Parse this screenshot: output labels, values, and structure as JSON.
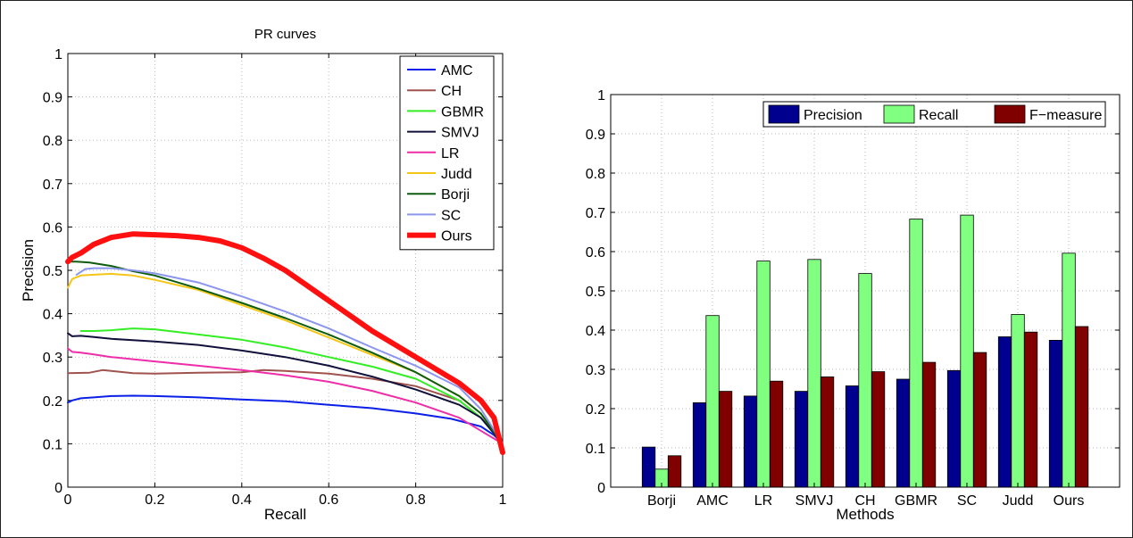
{
  "chart_data": [
    {
      "type": "line",
      "title": "PR curves",
      "xlabel": "Recall",
      "ylabel": "Precision",
      "xlim": [
        0,
        1
      ],
      "ylim": [
        0,
        1
      ],
      "xticks": [
        "0",
        "0.2",
        "0.4",
        "0.6",
        "0.8",
        "1"
      ],
      "yticks": [
        "0",
        "0.1",
        "0.2",
        "0.3",
        "0.4",
        "0.5",
        "0.6",
        "0.7",
        "0.8",
        "0.9",
        "1"
      ],
      "grid": true,
      "legend_position": "top-right",
      "series": [
        {
          "name": "AMC",
          "color": "#0a1fe8",
          "width": 2,
          "x": [
            0,
            0.01,
            0.03,
            0.06,
            0.1,
            0.15,
            0.2,
            0.3,
            0.4,
            0.5,
            0.6,
            0.7,
            0.8,
            0.88,
            0.95,
            0.98,
            1.0
          ],
          "y": [
            0.195,
            0.2,
            0.205,
            0.207,
            0.21,
            0.211,
            0.21,
            0.207,
            0.202,
            0.198,
            0.19,
            0.182,
            0.17,
            0.158,
            0.14,
            0.12,
            0.1
          ]
        },
        {
          "name": "CH",
          "color": "#a0524d",
          "width": 2,
          "x": [
            0,
            0.05,
            0.08,
            0.1,
            0.15,
            0.2,
            0.3,
            0.4,
            0.45,
            0.5,
            0.6,
            0.7,
            0.8,
            0.9,
            0.95,
            1.0
          ],
          "y": [
            0.263,
            0.264,
            0.27,
            0.268,
            0.263,
            0.262,
            0.264,
            0.265,
            0.27,
            0.268,
            0.262,
            0.25,
            0.233,
            0.2,
            0.16,
            0.1
          ]
        },
        {
          "name": "GBMR",
          "color": "#33ee22",
          "width": 2,
          "x": [
            0.03,
            0.06,
            0.1,
            0.15,
            0.2,
            0.3,
            0.4,
            0.5,
            0.6,
            0.7,
            0.8,
            0.9,
            0.95,
            1.0
          ],
          "y": [
            0.36,
            0.36,
            0.362,
            0.366,
            0.364,
            0.352,
            0.34,
            0.322,
            0.3,
            0.278,
            0.25,
            0.2,
            0.16,
            0.1
          ]
        },
        {
          "name": "SMVJ",
          "color": "#10103a",
          "width": 2,
          "x": [
            0,
            0.01,
            0.03,
            0.06,
            0.1,
            0.2,
            0.3,
            0.4,
            0.5,
            0.6,
            0.7,
            0.8,
            0.9,
            0.95,
            1.0
          ],
          "y": [
            0.355,
            0.348,
            0.349,
            0.346,
            0.342,
            0.336,
            0.328,
            0.315,
            0.3,
            0.28,
            0.255,
            0.225,
            0.19,
            0.16,
            0.1
          ]
        },
        {
          "name": "LR",
          "color": "#ee2ea8",
          "width": 2,
          "x": [
            0,
            0.01,
            0.03,
            0.06,
            0.1,
            0.2,
            0.3,
            0.4,
            0.5,
            0.6,
            0.7,
            0.8,
            0.9,
            0.95,
            1.0
          ],
          "y": [
            0.32,
            0.312,
            0.31,
            0.306,
            0.3,
            0.29,
            0.28,
            0.27,
            0.258,
            0.243,
            0.222,
            0.195,
            0.16,
            0.13,
            0.1
          ]
        },
        {
          "name": "Judd",
          "color": "#f5c518",
          "width": 2,
          "x": [
            0,
            0.01,
            0.03,
            0.06,
            0.1,
            0.15,
            0.2,
            0.3,
            0.4,
            0.5,
            0.6,
            0.7,
            0.8,
            0.9,
            0.95,
            1.0
          ],
          "y": [
            0.46,
            0.48,
            0.488,
            0.49,
            0.492,
            0.488,
            0.478,
            0.455,
            0.42,
            0.385,
            0.345,
            0.305,
            0.265,
            0.21,
            0.17,
            0.1
          ]
        },
        {
          "name": "Borji",
          "color": "#0e5c0e",
          "width": 2,
          "x": [
            0,
            0.02,
            0.05,
            0.1,
            0.15,
            0.2,
            0.3,
            0.4,
            0.5,
            0.6,
            0.7,
            0.8,
            0.9,
            0.95,
            1.0
          ],
          "y": [
            0.52,
            0.52,
            0.518,
            0.51,
            0.498,
            0.488,
            0.458,
            0.425,
            0.39,
            0.352,
            0.31,
            0.265,
            0.21,
            0.17,
            0.1
          ]
        },
        {
          "name": "SC",
          "color": "#8c96ee",
          "width": 2,
          "x": [
            0.02,
            0.04,
            0.06,
            0.1,
            0.15,
            0.2,
            0.3,
            0.4,
            0.5,
            0.6,
            0.7,
            0.8,
            0.9,
            0.95,
            1.0
          ],
          "y": [
            0.49,
            0.503,
            0.505,
            0.505,
            0.5,
            0.493,
            0.472,
            0.44,
            0.405,
            0.366,
            0.322,
            0.28,
            0.23,
            0.18,
            0.1
          ]
        },
        {
          "name": "Ours",
          "color": "#ff1010",
          "width": 6,
          "x": [
            0,
            0.01,
            0.03,
            0.06,
            0.1,
            0.15,
            0.2,
            0.25,
            0.3,
            0.35,
            0.4,
            0.45,
            0.5,
            0.55,
            0.6,
            0.7,
            0.8,
            0.9,
            0.95,
            0.98,
            1.0
          ],
          "y": [
            0.52,
            0.53,
            0.54,
            0.56,
            0.576,
            0.584,
            0.582,
            0.58,
            0.576,
            0.568,
            0.552,
            0.528,
            0.5,
            0.465,
            0.43,
            0.36,
            0.3,
            0.24,
            0.2,
            0.16,
            0.08
          ]
        }
      ]
    },
    {
      "type": "bar",
      "title": "",
      "xlabel": "Methods",
      "ylabel": "",
      "ylim": [
        0,
        1
      ],
      "yticks": [
        "0",
        "0.1",
        "0.2",
        "0.3",
        "0.4",
        "0.5",
        "0.6",
        "0.7",
        "0.8",
        "0.9",
        "1"
      ],
      "grid": true,
      "legend_position": "top-right",
      "categories": [
        "Borji",
        "AMC",
        "LR",
        "SMVJ",
        "CH",
        "GBMR",
        "SC",
        "Judd",
        "Ours"
      ],
      "series": [
        {
          "name": "Precision",
          "color": "#00008f",
          "values": [
            0.102,
            0.215,
            0.232,
            0.244,
            0.258,
            0.275,
            0.297,
            0.383,
            0.374
          ]
        },
        {
          "name": "Recall",
          "color": "#80ff80",
          "values": [
            0.046,
            0.437,
            0.576,
            0.58,
            0.544,
            0.683,
            0.693,
            0.44,
            0.596
          ]
        },
        {
          "name": "F−measure",
          "color": "#800000",
          "values": [
            0.08,
            0.244,
            0.27,
            0.281,
            0.294,
            0.318,
            0.343,
            0.395,
            0.409
          ]
        }
      ]
    }
  ]
}
